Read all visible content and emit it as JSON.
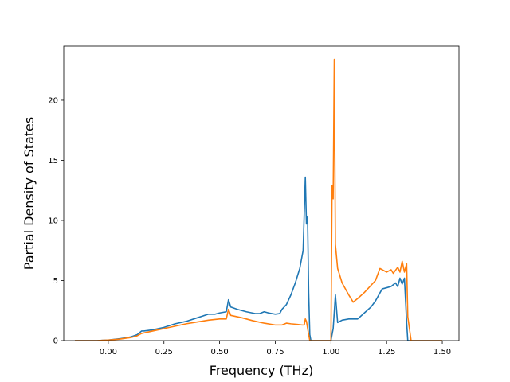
{
  "chart_data": {
    "type": "line",
    "title": "",
    "xlabel": "Frequency (THz)",
    "ylabel": "Partial Density of States",
    "xlim": [
      -0.2,
      1.575
    ],
    "ylim": [
      0,
      24.5
    ],
    "xticks": [
      0.0,
      0.25,
      0.5,
      0.75,
      1.0,
      1.25,
      1.5
    ],
    "xtick_labels": [
      "0.00",
      "0.25",
      "0.50",
      "0.75",
      "1.00",
      "1.25",
      "1.50"
    ],
    "yticks": [
      0,
      5,
      10,
      15,
      20
    ],
    "ytick_labels": [
      "0",
      "5",
      "10",
      "15",
      "20"
    ],
    "grid": false,
    "legend": "none",
    "series": [
      {
        "color": "#1f77b4",
        "x": [
          -0.15,
          -0.05,
          0.0,
          0.05,
          0.1,
          0.13,
          0.15,
          0.16,
          0.2,
          0.25,
          0.3,
          0.35,
          0.4,
          0.45,
          0.48,
          0.5,
          0.53,
          0.54,
          0.55,
          0.58,
          0.62,
          0.66,
          0.68,
          0.7,
          0.72,
          0.75,
          0.77,
          0.78,
          0.8,
          0.82,
          0.84,
          0.86,
          0.875,
          0.885,
          0.89,
          0.895,
          0.9,
          0.905,
          0.91,
          0.915,
          1.0,
          1.01,
          1.02,
          1.03,
          1.05,
          1.08,
          1.1,
          1.12,
          1.15,
          1.18,
          1.2,
          1.23,
          1.25,
          1.27,
          1.29,
          1.3,
          1.31,
          1.32,
          1.33,
          1.34,
          1.345,
          1.36,
          1.5
        ],
        "y": [
          0,
          0,
          0.05,
          0.15,
          0.3,
          0.5,
          0.8,
          0.8,
          0.9,
          1.1,
          1.4,
          1.6,
          1.9,
          2.2,
          2.2,
          2.3,
          2.4,
          3.4,
          2.8,
          2.6,
          2.4,
          2.25,
          2.25,
          2.4,
          2.3,
          2.2,
          2.25,
          2.6,
          3.0,
          3.8,
          4.8,
          6.0,
          7.5,
          13.6,
          9.7,
          10.3,
          4.0,
          0.5,
          0,
          0,
          0,
          1.0,
          3.8,
          1.5,
          1.7,
          1.8,
          1.8,
          1.8,
          2.3,
          2.8,
          3.3,
          4.3,
          4.4,
          4.5,
          4.8,
          4.5,
          5.2,
          4.7,
          5.2,
          1.5,
          0,
          0,
          0
        ]
      },
      {
        "color": "#ff7f0e",
        "x": [
          -0.15,
          -0.05,
          0.0,
          0.05,
          0.1,
          0.13,
          0.15,
          0.2,
          0.25,
          0.3,
          0.35,
          0.4,
          0.45,
          0.5,
          0.53,
          0.54,
          0.55,
          0.6,
          0.65,
          0.7,
          0.75,
          0.78,
          0.8,
          0.82,
          0.85,
          0.87,
          0.88,
          0.885,
          0.89,
          0.9,
          0.905,
          0.91,
          1.0,
          1.005,
          1.01,
          1.015,
          1.02,
          1.03,
          1.05,
          1.08,
          1.1,
          1.12,
          1.15,
          1.2,
          1.22,
          1.25,
          1.27,
          1.28,
          1.3,
          1.31,
          1.32,
          1.33,
          1.34,
          1.345,
          1.36,
          1.5
        ],
        "y": [
          0,
          0,
          0.05,
          0.12,
          0.25,
          0.4,
          0.6,
          0.8,
          1.0,
          1.2,
          1.4,
          1.55,
          1.7,
          1.8,
          1.8,
          2.6,
          2.1,
          1.9,
          1.65,
          1.45,
          1.3,
          1.3,
          1.45,
          1.4,
          1.35,
          1.3,
          1.3,
          1.8,
          1.6,
          0.5,
          0,
          0,
          0,
          12.9,
          11.8,
          23.4,
          8.0,
          6.0,
          4.8,
          3.8,
          3.2,
          3.5,
          4.0,
          5.0,
          6.0,
          5.7,
          5.9,
          5.6,
          6.1,
          5.7,
          6.6,
          5.7,
          6.4,
          2.0,
          0,
          0
        ]
      }
    ]
  }
}
